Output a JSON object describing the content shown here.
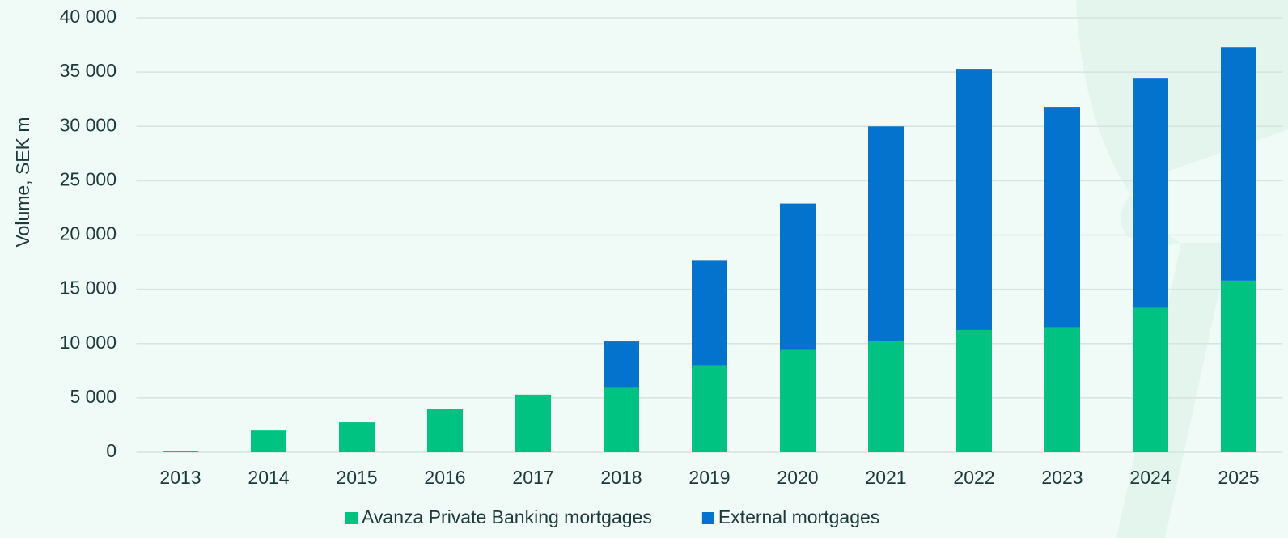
{
  "chart_data": {
    "type": "stacked_bar",
    "y_label": "Volume, SEK m",
    "categories": [
      "2013",
      "2014",
      "2015",
      "2016",
      "2017",
      "2018",
      "2019",
      "2020",
      "2021",
      "2022",
      "2023",
      "2024",
      "2025"
    ],
    "series": [
      {
        "name": "Avanza Private Banking mortgages",
        "color": "#00c281",
        "values": [
          100,
          2000,
          2750,
          4000,
          5300,
          6000,
          8000,
          9400,
          10200,
          11250,
          11500,
          13300,
          15800
        ]
      },
      {
        "name": "External mortgages",
        "color": "#0473ce",
        "values": [
          0,
          0,
          0,
          0,
          0,
          4200,
          9700,
          13500,
          19800,
          24050,
          20300,
          21100,
          21500
        ]
      }
    ],
    "ylim": [
      0,
      40000
    ],
    "yticks": [
      0,
      {
        "value": 5000,
        "label": "5 000"
      },
      {
        "value": 10000,
        "label": "10 000"
      },
      {
        "value": 15000,
        "label": "15 000"
      },
      {
        "value": 20000,
        "label": "20 000"
      },
      {
        "value": 25000,
        "label": "25 000"
      },
      {
        "value": 30000,
        "label": "30 000"
      },
      {
        "value": 35000,
        "label": "35 000"
      },
      {
        "value": 40000,
        "label": "40 000"
      }
    ],
    "grid": true,
    "legend": "bottom"
  }
}
